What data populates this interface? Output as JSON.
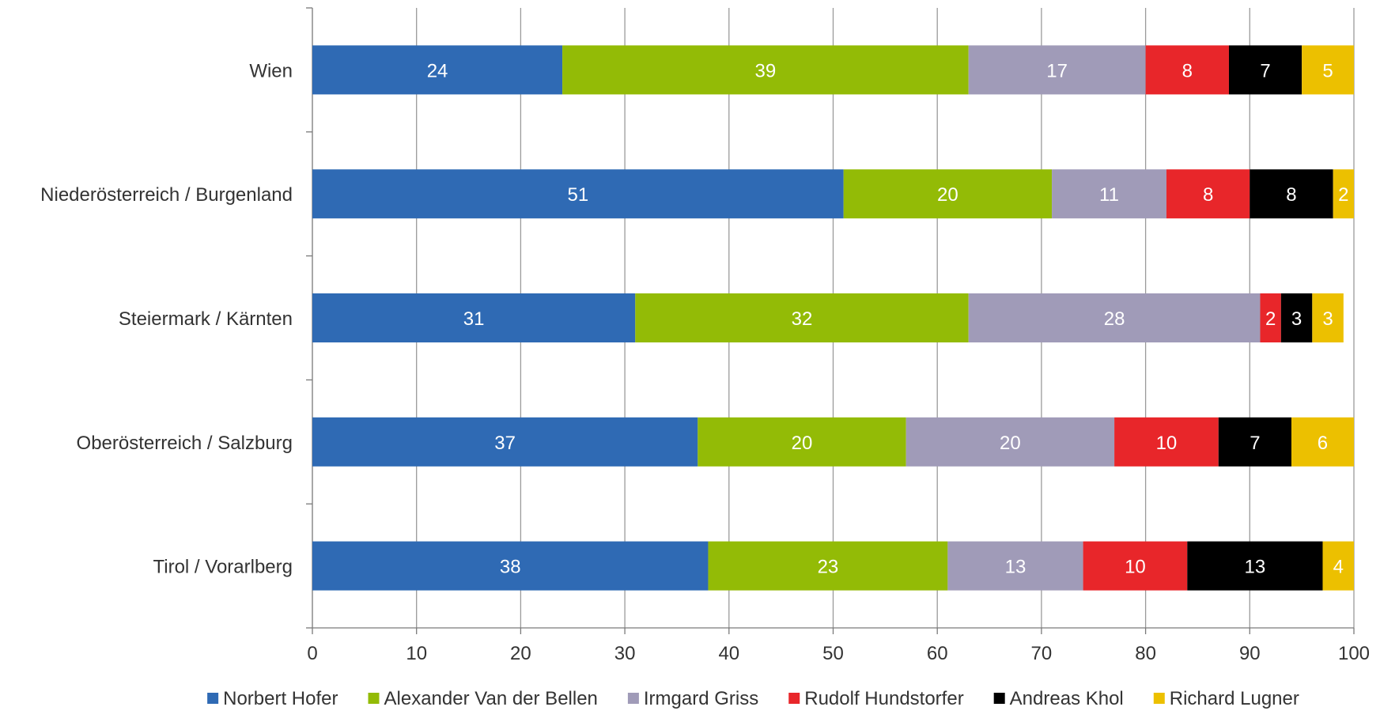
{
  "chart_data": {
    "type": "bar",
    "orientation": "horizontal",
    "stacked": true,
    "title": "",
    "xlabel": "",
    "ylabel": "",
    "xlim": [
      0,
      100
    ],
    "x_ticks": [
      0,
      10,
      20,
      30,
      40,
      50,
      60,
      70,
      80,
      90,
      100
    ],
    "grid": "vertical",
    "legend_position": "bottom",
    "categories": [
      "Wien",
      "Niederösterreich / Burgenland",
      "Steiermark / Kärnten",
      "Oberösterreich / Salzburg",
      "Tirol / Vorarlberg"
    ],
    "series": [
      {
        "name": "Norbert Hofer",
        "color": "#2f6ab4",
        "values": [
          24,
          51,
          31,
          37,
          38
        ]
      },
      {
        "name": "Alexander Van der Bellen",
        "color": "#93bb06",
        "values": [
          39,
          20,
          32,
          20,
          23
        ]
      },
      {
        "name": "Irmgard Griss",
        "color": "#a09bb8",
        "values": [
          17,
          11,
          28,
          20,
          13
        ]
      },
      {
        "name": "Rudolf Hundstorfer",
        "color": "#e8262a",
        "values": [
          8,
          8,
          2,
          10,
          10
        ]
      },
      {
        "name": "Andreas Khol",
        "color": "#000000",
        "values": [
          7,
          8,
          3,
          7,
          13
        ]
      },
      {
        "name": "Richard Lugner",
        "color": "#ecc000",
        "values": [
          5,
          2,
          3,
          6,
          4
        ]
      }
    ]
  }
}
